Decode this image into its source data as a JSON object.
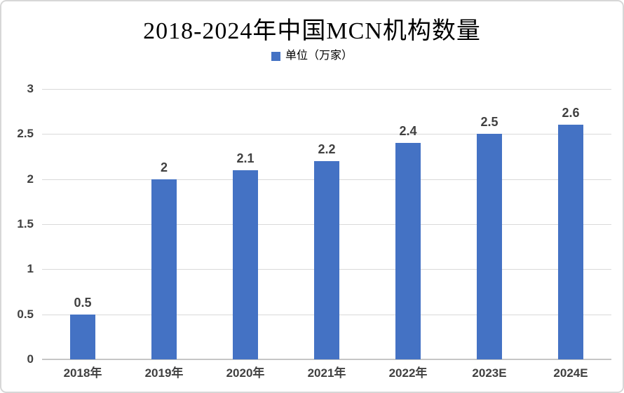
{
  "title": "2018-2024年中国MCN机构数量",
  "legend": {
    "label": "单位（万家）",
    "marker_color": "#4472c4"
  },
  "chart_data": {
    "type": "bar",
    "title": "2018-2024年中国MCN机构数量",
    "categories": [
      "2018年",
      "2019年",
      "2020年",
      "2021年",
      "2022年",
      "2023E",
      "2024E"
    ],
    "values": [
      0.5,
      2,
      2.1,
      2.2,
      2.4,
      2.5,
      2.6
    ],
    "data_labels": [
      "0.5",
      "2",
      "2.1",
      "2.2",
      "2.4",
      "2.5",
      "2.6"
    ],
    "legend_entries": [
      "单位（万家）"
    ],
    "legend_position": "top",
    "xlabel": "",
    "ylabel": "",
    "ylim": [
      0,
      3
    ],
    "yticks": [
      0,
      0.5,
      1,
      1.5,
      2,
      2.5,
      3
    ],
    "ytick_labels": [
      "0",
      "0.5",
      "1",
      "1.5",
      "2",
      "2.5",
      "3"
    ],
    "grid": true,
    "bar_color": "#4472c4",
    "tick_label_color": "#404040",
    "gridline_color": "#d9d9d9"
  }
}
